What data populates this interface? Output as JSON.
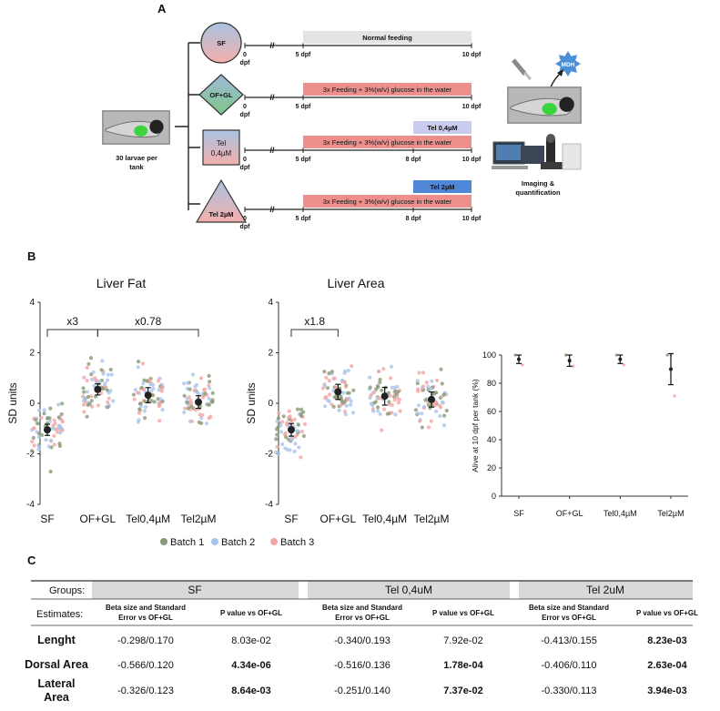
{
  "panel_labels": {
    "a": "A",
    "b": "B",
    "c": "C"
  },
  "panel_a": {
    "larvae_label": [
      "30 larvae per",
      "tank"
    ],
    "groups": [
      {
        "shape": "circle",
        "label": [
          "SF"
        ],
        "feeding": "Normal feeding",
        "treatment": ""
      },
      {
        "shape": "diamond",
        "label": [
          "OF+GL"
        ],
        "feeding": "3x Feeding + 3%(w/v) glucose in the water",
        "treatment": ""
      },
      {
        "shape": "square",
        "label": [
          "Tel",
          "0,4µM"
        ],
        "feeding": "3x Feeding + 3%(w/v) glucose in the water",
        "treatment": "Tel 0,4µM"
      },
      {
        "shape": "triangle",
        "label": [
          "Tel 2µM"
        ],
        "feeding": "3x Feeding + 3%(w/v) glucose in the water",
        "treatment": "Tel 2µM"
      }
    ],
    "timeline_labels": {
      "d0": "0",
      "dpf": "dpf",
      "d5": "5 dpf",
      "d8": "8 dpf",
      "d10": "10 dpf",
      "break_mark": "//"
    },
    "mdh_label": "MDH",
    "imaging_label": [
      "Imaging &",
      "quantification"
    ],
    "colors": {
      "feeding_bar": "#ee8f8c",
      "normal_bar": "#e4e4e4",
      "tel04_bar": "#c9cbef",
      "tel2_bar": "#4f86d6",
      "shape_top": "#a9c2e0",
      "shape_bottom": "#f3b0ad",
      "diamond_top": "#9fb9d9",
      "diamond_bottom": "#7dc787"
    }
  },
  "chart_data": [
    {
      "type": "scatter",
      "title": "Liver Fat",
      "ylabel": "SD units",
      "categories": [
        "SF",
        "OF+GL",
        "Tel0,4µM",
        "Tel2µM"
      ],
      "ylim": [
        -4,
        4
      ],
      "yticks": [
        -4,
        -2,
        0,
        2,
        4
      ],
      "means": [
        -1.05,
        0.55,
        0.32,
        0.05
      ],
      "errors": [
        0.22,
        0.22,
        0.3,
        0.25
      ],
      "annotations": [
        {
          "from": "SF",
          "to": "OF+GL",
          "text": "x3"
        },
        {
          "from": "OF+GL",
          "to": "Tel2µM",
          "text": "x0.78"
        }
      ]
    },
    {
      "type": "scatter",
      "title": "Liver Area",
      "ylabel": "SD units",
      "categories": [
        "SF",
        "OF+GL",
        "Tel0,4µM",
        "Tel2µM"
      ],
      "ylim": [
        -4,
        4
      ],
      "yticks": [
        -4,
        -2,
        0,
        2,
        4
      ],
      "means": [
        -1.05,
        0.45,
        0.28,
        0.15
      ],
      "errors": [
        0.25,
        0.3,
        0.35,
        0.3
      ],
      "annotations": [
        {
          "from": "SF",
          "to": "OF+GL",
          "text": "x1.8"
        }
      ]
    },
    {
      "type": "scatter",
      "title": "",
      "ylabel": "Alive at 10 dpf per tank (%)",
      "categories": [
        "SF",
        "OF+GL",
        "Tel0,4µM",
        "Tel2µM"
      ],
      "ylim": [
        0,
        100
      ],
      "yticks": [
        0,
        20,
        40,
        60,
        80,
        100
      ],
      "means": [
        97,
        96,
        97,
        90
      ],
      "errors": [
        3,
        4,
        3,
        11
      ],
      "tank_points": [
        [
          100,
          97,
          93
        ],
        [
          100,
          97,
          92
        ],
        [
          100,
          97,
          93
        ],
        [
          100,
          100,
          71
        ]
      ]
    }
  ],
  "legend": {
    "items": [
      {
        "name": "Batch 1",
        "color": "#8a9a76"
      },
      {
        "name": "Batch 2",
        "color": "#a9c4ea"
      },
      {
        "name": "Batch 3",
        "color": "#f4a5a3"
      }
    ]
  },
  "table": {
    "row_label_groups": "Groups:",
    "row_label_estimates": "Estimates:",
    "groups": [
      "SF",
      "Tel 0,4uM",
      "Tel 2uM"
    ],
    "sub_headers": [
      [
        "Beta size and Standard",
        "Error vs OF+GL"
      ],
      [
        "P value vs OF+GL"
      ]
    ],
    "rows": [
      {
        "label": [
          "Lenght"
        ],
        "cells": [
          {
            "text": "-0.298/0.170",
            "bold": false
          },
          {
            "text": "8.03e-02",
            "bold": false
          },
          {
            "text": "-0.340/0.193",
            "bold": false
          },
          {
            "text": "7.92e-02",
            "bold": false
          },
          {
            "text": "-0.413/0.155",
            "bold": false
          },
          {
            "text": "8.23e-03",
            "bold": true
          }
        ]
      },
      {
        "label": [
          "Dorsal Area"
        ],
        "cells": [
          {
            "text": "-0.566/0.120",
            "bold": false
          },
          {
            "text": "4.34e-06",
            "bold": true
          },
          {
            "text": "-0.516/0.136",
            "bold": false
          },
          {
            "text": "1.78e-04",
            "bold": true
          },
          {
            "text": "-0.406/0.110",
            "bold": false
          },
          {
            "text": "2.63e-04",
            "bold": true
          }
        ]
      },
      {
        "label": [
          "Lateral",
          "Area"
        ],
        "cells": [
          {
            "text": "-0.326/0.123",
            "bold": false
          },
          {
            "text": "8.64e-03",
            "bold": true
          },
          {
            "text": "-0.251/0.140",
            "bold": false
          },
          {
            "text": "7.37e-02",
            "bold": true
          },
          {
            "text": "-0.330/0.113",
            "bold": false
          },
          {
            "text": "3.94e-03",
            "bold": true
          }
        ]
      }
    ]
  }
}
